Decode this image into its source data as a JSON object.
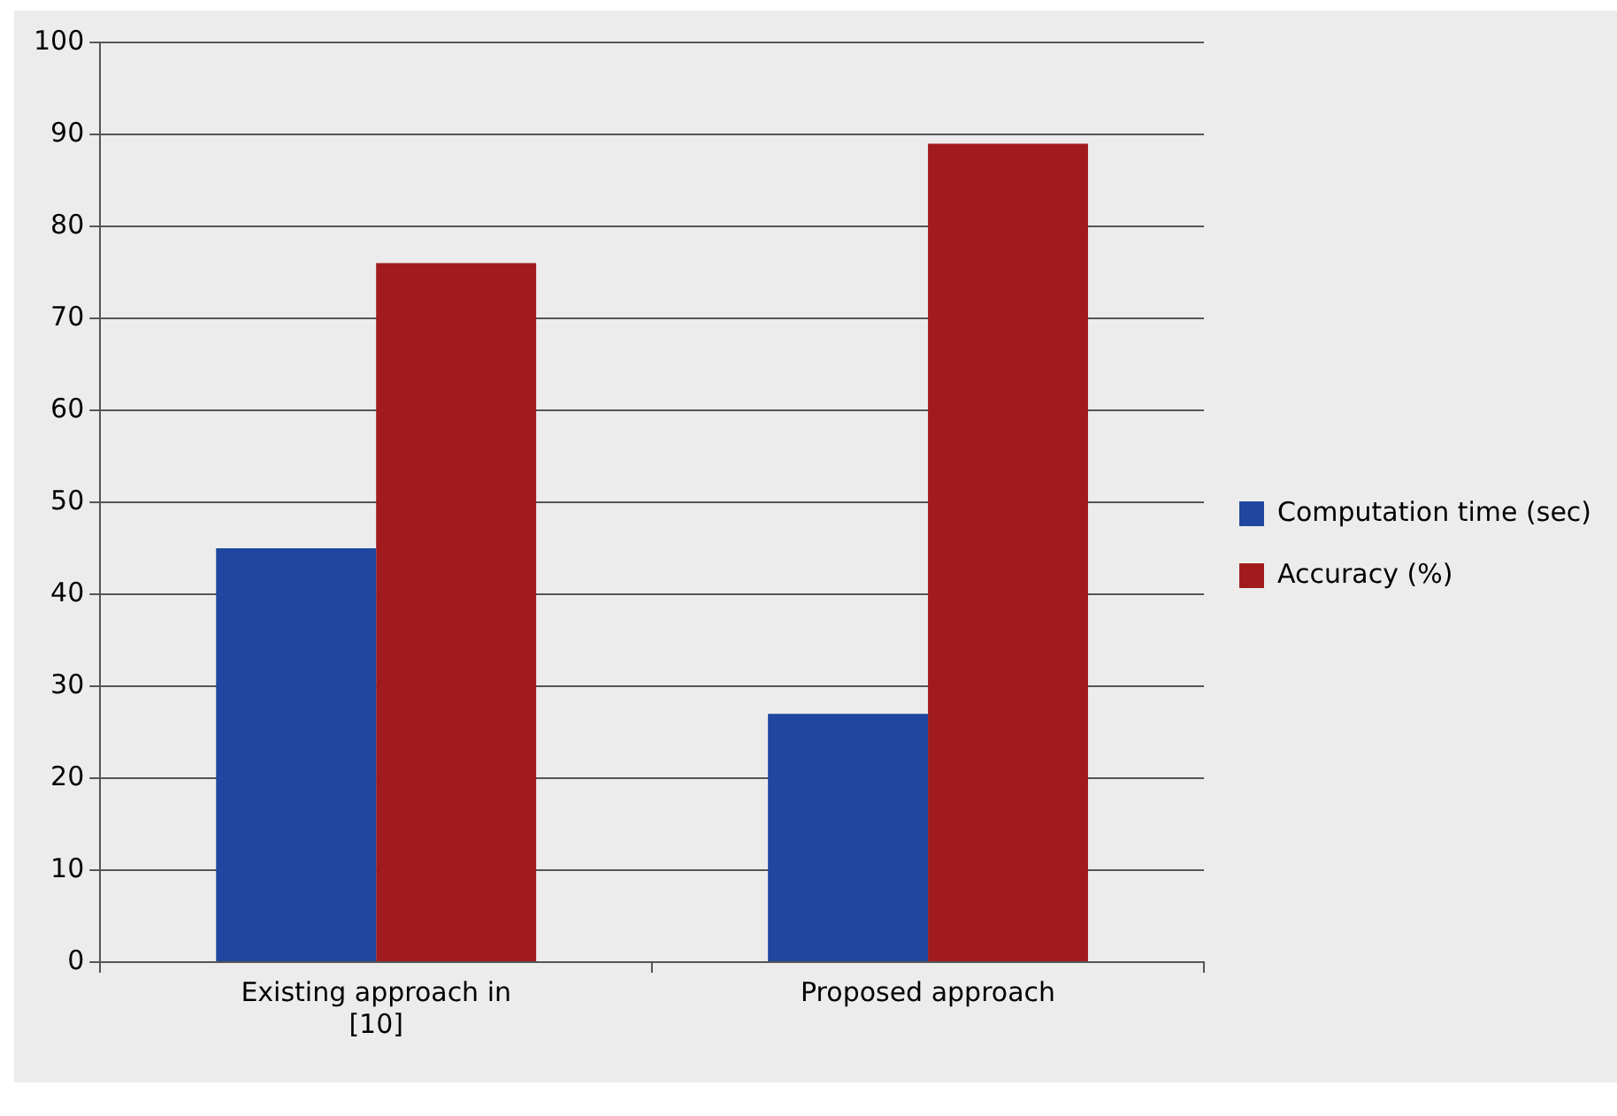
{
  "chart_data": {
    "type": "bar",
    "categories": [
      "Existing approach in [10]",
      "Proposed approach"
    ],
    "series": [
      {
        "name": "Computation time (sec)",
        "color": "#1f47a0",
        "values": [
          45,
          27
        ]
      },
      {
        "name": "Accuracy (%)",
        "color": "#a11b1e",
        "values": [
          76,
          89
        ]
      }
    ],
    "ylim": [
      0,
      100
    ],
    "yticks": [
      0,
      10,
      20,
      30,
      40,
      50,
      60,
      70,
      80,
      90,
      100
    ],
    "grid": "y",
    "legend": "right"
  }
}
